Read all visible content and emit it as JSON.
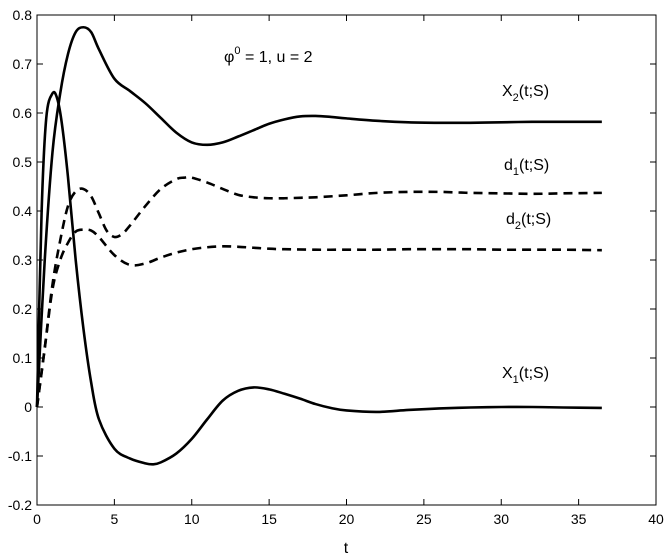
{
  "chart_data": {
    "type": "line",
    "title": "",
    "xlabel": "t",
    "ylabel": "",
    "xlim": [
      0,
      40
    ],
    "ylim": [
      -0.2,
      0.8
    ],
    "xticks": [
      0,
      5,
      10,
      15,
      20,
      25,
      30,
      35,
      40
    ],
    "yticks": [
      -0.2,
      -0.1,
      0,
      0.1,
      0.2,
      0.3,
      0.4,
      0.5,
      0.6,
      0.7,
      0.8
    ],
    "grid": false,
    "legend": "none",
    "annotations": {
      "params": {
        "phi": "φ",
        "phi_sup": "0",
        "rest": " = 1,  u = 2"
      },
      "x2": {
        "base": "X",
        "sub": "2",
        "tail": "(t;S)"
      },
      "d1": {
        "base": "d",
        "sub": "1",
        "tail": "(t;S)"
      },
      "d2": {
        "base": "d",
        "sub": "2",
        "tail": "(t;S)"
      },
      "x1": {
        "base": "X",
        "sub": "1",
        "tail": "(t;S)"
      }
    },
    "series": [
      {
        "id": "x2",
        "style": "solid",
        "color": "#000000",
        "x": [
          0,
          0.5,
          1,
          1.5,
          2,
          2.5,
          3,
          3.5,
          4,
          5,
          6,
          7,
          8,
          9,
          10,
          11,
          12,
          13,
          14,
          15,
          16,
          17,
          18,
          19,
          20,
          22,
          24,
          26,
          28,
          30,
          32,
          34,
          36.5
        ],
        "y": [
          0,
          0.3,
          0.52,
          0.64,
          0.72,
          0.765,
          0.775,
          0.765,
          0.73,
          0.67,
          0.645,
          0.62,
          0.59,
          0.56,
          0.54,
          0.535,
          0.54,
          0.552,
          0.565,
          0.578,
          0.587,
          0.593,
          0.594,
          0.592,
          0.589,
          0.584,
          0.581,
          0.58,
          0.58,
          0.581,
          0.582,
          0.582,
          0.582
        ]
      },
      {
        "id": "x1",
        "style": "solid",
        "color": "#000000",
        "x": [
          0,
          0.3,
          0.6,
          1,
          1.3,
          1.6,
          2,
          2.5,
          3,
          3.5,
          4,
          5,
          6,
          7,
          7.5,
          8,
          9,
          10,
          11,
          12,
          13,
          14,
          15,
          16,
          17,
          18,
          19,
          20,
          22,
          24,
          26,
          28,
          30,
          32,
          34,
          36.5
        ],
        "y": [
          0,
          0.4,
          0.59,
          0.64,
          0.63,
          0.58,
          0.47,
          0.3,
          0.16,
          0.05,
          -0.025,
          -0.085,
          -0.105,
          -0.115,
          -0.117,
          -0.113,
          -0.095,
          -0.065,
          -0.025,
          0.013,
          0.033,
          0.04,
          0.036,
          0.027,
          0.017,
          0.006,
          -0.002,
          -0.007,
          -0.01,
          -0.006,
          -0.003,
          -0.001,
          0.0,
          0.0,
          -0.001,
          -0.002
        ]
      },
      {
        "id": "d1",
        "style": "dashed",
        "color": "#000000",
        "x": [
          0,
          0.5,
          1,
          1.5,
          2,
          2.5,
          3,
          3.5,
          4,
          4.5,
          5,
          5.5,
          6,
          7,
          8,
          9,
          9.5,
          10,
          11,
          12,
          13,
          14,
          15,
          16,
          17,
          18,
          20,
          22,
          24,
          26,
          28,
          30,
          32,
          34,
          36.5
        ],
        "y": [
          0,
          0.12,
          0.25,
          0.34,
          0.41,
          0.44,
          0.445,
          0.43,
          0.395,
          0.36,
          0.347,
          0.353,
          0.37,
          0.41,
          0.445,
          0.465,
          0.468,
          0.468,
          0.458,
          0.445,
          0.433,
          0.428,
          0.426,
          0.426,
          0.427,
          0.428,
          0.432,
          0.437,
          0.439,
          0.439,
          0.437,
          0.436,
          0.435,
          0.436,
          0.437
        ]
      },
      {
        "id": "d2",
        "style": "dashed",
        "color": "#000000",
        "x": [
          0,
          0.5,
          1,
          1.5,
          2,
          2.5,
          3,
          3.5,
          4,
          5,
          6,
          7,
          8,
          9,
          10,
          11,
          12,
          13,
          14,
          15,
          16,
          18,
          20,
          22,
          24,
          26,
          28,
          30,
          32,
          34,
          36.5
        ],
        "y": [
          0,
          0.12,
          0.24,
          0.3,
          0.335,
          0.358,
          0.362,
          0.36,
          0.347,
          0.31,
          0.29,
          0.293,
          0.305,
          0.315,
          0.322,
          0.326,
          0.328,
          0.327,
          0.325,
          0.323,
          0.322,
          0.321,
          0.321,
          0.321,
          0.322,
          0.322,
          0.322,
          0.321,
          0.321,
          0.321,
          0.32
        ]
      }
    ]
  }
}
